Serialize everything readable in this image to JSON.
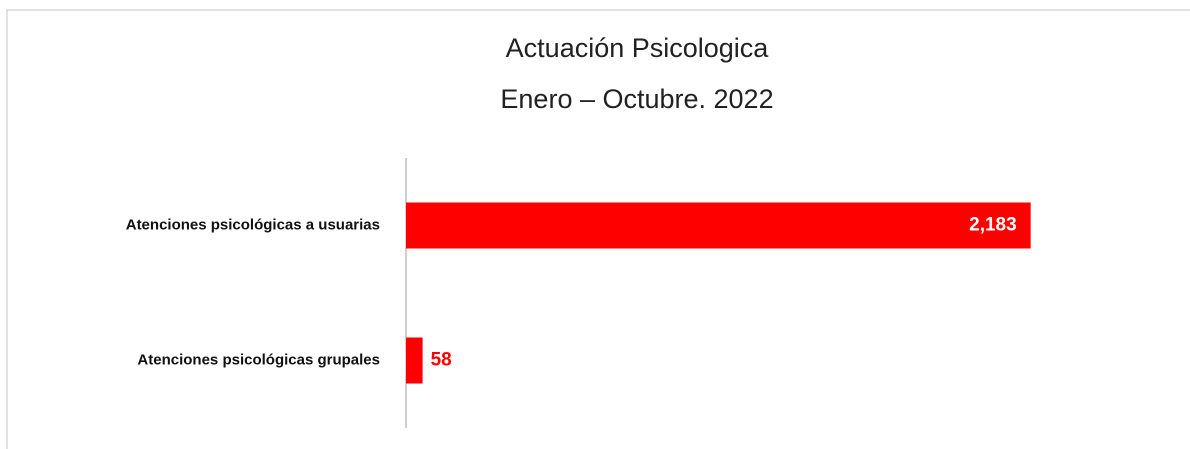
{
  "chart_data": {
    "type": "bar",
    "orientation": "horizontal",
    "title": "Actuación Psicologica",
    "subtitle": "Enero – Octubre. 2022",
    "categories": [
      "Atenciones psicológicas a usuarias",
      "Atenciones psicológicas grupales"
    ],
    "values": [
      2183,
      58
    ],
    "value_labels": [
      "2,183",
      "58"
    ],
    "color": "#ff0000",
    "xlim": [
      0,
      2600
    ]
  }
}
